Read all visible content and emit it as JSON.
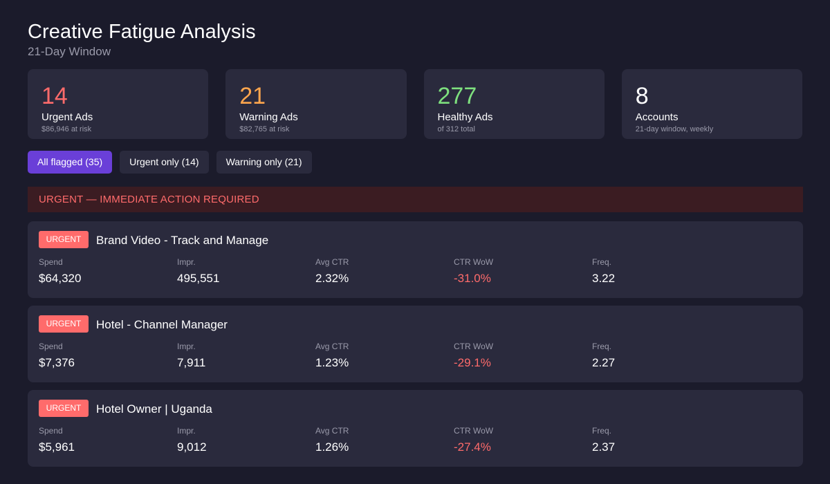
{
  "header": {
    "title": "Creative Fatigue Analysis",
    "subtitle": "21-Day Window"
  },
  "stats": [
    {
      "value": "14",
      "label": "Urgent Ads",
      "sub": "$86,946 at risk",
      "color": "#ff6b6b"
    },
    {
      "value": "21",
      "label": "Warning Ads",
      "sub": "$82,765 at risk",
      "color": "#ffa64d"
    },
    {
      "value": "277",
      "label": "Healthy Ads",
      "sub": "of 312 total",
      "color": "#7ee07e"
    },
    {
      "value": "8",
      "label": "Accounts",
      "sub": "21-day window, weekly",
      "color": "#ffffff"
    }
  ],
  "filters": [
    {
      "label": "All flagged (35)",
      "active": true
    },
    {
      "label": "Urgent only (14)",
      "active": false
    },
    {
      "label": "Warning only (21)",
      "active": false
    }
  ],
  "banner": {
    "text": "URGENT — IMMEDIATE ACTION REQUIRED"
  },
  "metric_labels": {
    "spend": "Spend",
    "impr": "Impr.",
    "ctr": "Avg CTR",
    "wow": "CTR WoW",
    "freq": "Freq."
  },
  "ads": [
    {
      "badge": "URGENT",
      "name": "Brand Video - Track and Manage",
      "spend": "$64,320",
      "impr": "495,551",
      "ctr": "2.32%",
      "wow": "-31.0%",
      "freq": "3.22"
    },
    {
      "badge": "URGENT",
      "name": "Hotel - Channel Manager",
      "spend": "$7,376",
      "impr": "7,911",
      "ctr": "1.23%",
      "wow": "-29.1%",
      "freq": "2.27"
    },
    {
      "badge": "URGENT",
      "name": "Hotel Owner | Uganda",
      "spend": "$5,961",
      "impr": "9,012",
      "ctr": "1.26%",
      "wow": "-27.4%",
      "freq": "2.37"
    }
  ],
  "colors": {
    "accent": "#6a3fd8",
    "urgent": "#ff6b6b",
    "warning": "#ffa64d",
    "healthy": "#7ee07e"
  }
}
